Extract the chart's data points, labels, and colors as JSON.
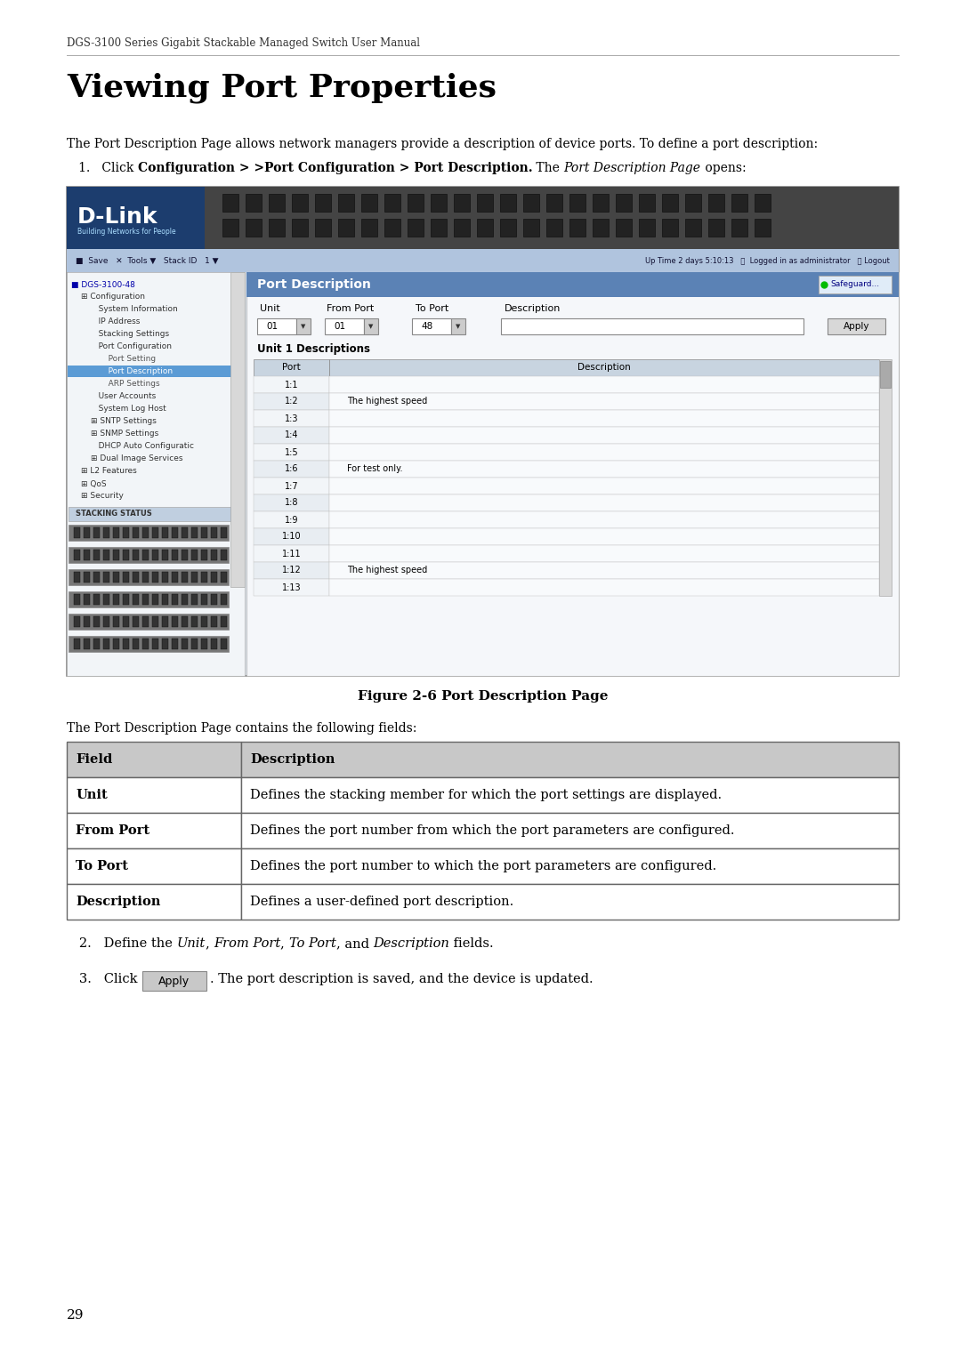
{
  "page_width": 10.8,
  "page_height": 15.27,
  "dpi": 100,
  "background_color": "#ffffff",
  "header_text": "DGS-3100 Series Gigabit Stackable Managed Switch User Manual",
  "title": "Viewing Port Properties",
  "intro_text": "The Port Description Page allows network managers provide a description of device ports. To define a port description:",
  "step1_plain": "Click ",
  "step1_bold": "Configuration > >Port Configuration > Port Description.",
  "step1_plain2": " The ",
  "step1_italic": "Port Description Page",
  "step1_plain3": " opens:",
  "figure_caption": "Figure 2-6 Port Description Page",
  "table_intro": "The Port Description Page contains the following fields:",
  "table_headers": [
    "Field",
    "Description"
  ],
  "table_rows": [
    [
      "Unit",
      "Defines the stacking member for which the port settings are displayed."
    ],
    [
      "From Port",
      "Defines the port number from which the port parameters are configured."
    ],
    [
      "To Port",
      "Defines the port number to which the port parameters are configured."
    ],
    [
      "Description",
      "Defines a user-defined port description."
    ]
  ],
  "page_number": "29",
  "nav_items": [
    [
      0,
      "DGS-3100-48",
      false
    ],
    [
      1,
      "Configuration",
      false
    ],
    [
      2,
      "System Information",
      false
    ],
    [
      2,
      "IP Address",
      false
    ],
    [
      2,
      "Stacking Settings",
      false
    ],
    [
      2,
      "Port Configuration",
      false
    ],
    [
      3,
      "Port Setting",
      false
    ],
    [
      3,
      "Port Description",
      true
    ],
    [
      3,
      "ARP Settings",
      false
    ],
    [
      2,
      "User Accounts",
      false
    ],
    [
      2,
      "System Log Host",
      false
    ],
    [
      2,
      "SNTP Settings",
      false
    ],
    [
      2,
      "SNMP Settings",
      false
    ],
    [
      2,
      "DHCP Auto Configuratic",
      false
    ],
    [
      2,
      "Dual Image Services",
      false
    ],
    [
      1,
      "L2 Features",
      false
    ],
    [
      1,
      "QoS",
      false
    ],
    [
      1,
      "Security",
      false
    ]
  ],
  "ports": [
    [
      "1:1",
      ""
    ],
    [
      "1:2",
      "The highest speed"
    ],
    [
      "1:3",
      ""
    ],
    [
      "1:4",
      ""
    ],
    [
      "1:5",
      ""
    ],
    [
      "1:6",
      "For test only."
    ],
    [
      "1:7",
      ""
    ],
    [
      "1:8",
      ""
    ],
    [
      "1:9",
      ""
    ],
    [
      "1:10",
      ""
    ],
    [
      "1:11",
      ""
    ],
    [
      "1:12",
      "The highest speed"
    ],
    [
      "1:13",
      ""
    ]
  ]
}
